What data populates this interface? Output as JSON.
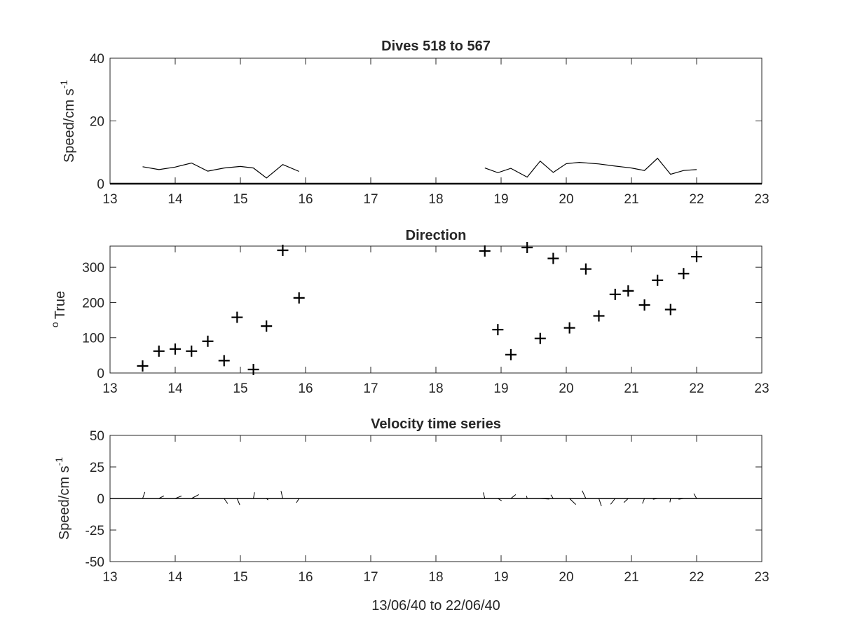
{
  "chart_data": [
    {
      "type": "line",
      "title": "Dives 518 to 567",
      "xlabel": "",
      "ylabel": "Speed/cm s",
      "ylabel_superscript": "-1",
      "xlim": [
        13,
        23
      ],
      "ylim": [
        0,
        40
      ],
      "xticks": [
        "13",
        "14",
        "15",
        "16",
        "17",
        "18",
        "19",
        "20",
        "21",
        "22",
        "23"
      ],
      "yticks": [
        "0",
        "20",
        "40"
      ],
      "grid": false,
      "segments": [
        {
          "x": [
            13.5,
            13.75,
            14.0,
            14.25,
            14.5,
            14.75,
            15.0,
            15.2,
            15.4,
            15.65,
            15.9
          ],
          "y": [
            5.4,
            4.5,
            5.3,
            6.6,
            4.0,
            5.0,
            5.5,
            5.0,
            1.8,
            6.1,
            3.9
          ]
        },
        {
          "x": [
            18.75,
            18.95,
            19.15,
            19.4,
            19.6,
            19.8,
            20.0,
            20.2,
            20.5,
            20.75,
            21.0,
            21.2,
            21.4,
            21.6,
            21.8,
            22.0
          ],
          "y": [
            5.0,
            3.5,
            4.9,
            2.1,
            7.2,
            3.6,
            6.4,
            6.8,
            6.3,
            5.6,
            5.0,
            4.2,
            8.1,
            3.0,
            4.2,
            4.5
          ]
        }
      ]
    },
    {
      "type": "scatter",
      "title": "Direction",
      "xlabel": "",
      "ylabel": "True",
      "ylabel_prefix": "o",
      "xlim": [
        13,
        23
      ],
      "ylim": [
        0,
        360
      ],
      "xticks": [
        "13",
        "14",
        "15",
        "16",
        "17",
        "18",
        "19",
        "20",
        "21",
        "22",
        "23"
      ],
      "yticks": [
        "0",
        "100",
        "200",
        "300"
      ],
      "grid": false,
      "points": {
        "x": [
          13.5,
          13.75,
          14.0,
          14.25,
          14.5,
          14.75,
          14.95,
          15.2,
          15.4,
          15.65,
          15.9,
          18.75,
          18.95,
          19.15,
          19.4,
          19.6,
          19.8,
          20.05,
          20.3,
          20.5,
          20.75,
          20.95,
          21.2,
          21.4,
          21.6,
          21.8,
          22.0
        ],
        "y": [
          20,
          62,
          68,
          62,
          90,
          35,
          158,
          10,
          133,
          348,
          213,
          346,
          123,
          52,
          356,
          98,
          325,
          128,
          295,
          162,
          223,
          233,
          193,
          263,
          180,
          282,
          330
        ]
      }
    },
    {
      "type": "line",
      "title": "Velocity time series",
      "xlabel": "13/06/40 to 22/06/40",
      "ylabel": "Speed/cm s",
      "ylabel_superscript": "-1",
      "xlim": [
        13,
        23
      ],
      "ylim": [
        -50,
        50
      ],
      "xticks": [
        "13",
        "14",
        "15",
        "16",
        "17",
        "18",
        "19",
        "20",
        "21",
        "22",
        "23"
      ],
      "yticks": [
        "-50",
        "-25",
        "0",
        "25",
        "50"
      ],
      "grid": false,
      "baseline": 0,
      "vectors": {
        "x": [
          13.5,
          13.75,
          14.0,
          14.25,
          14.5,
          14.75,
          14.95,
          15.2,
          15.4,
          15.65,
          15.9,
          18.75,
          18.95,
          19.15,
          19.4,
          19.6,
          19.8,
          20.05,
          20.3,
          20.5,
          20.75,
          20.95,
          21.2,
          21.4,
          21.6,
          21.8,
          22.0
        ],
        "u": [
          1.8,
          4.0,
          5.0,
          5.8,
          4.0,
          2.9,
          2.1,
          0.9,
          1.3,
          -1.4,
          -2.1,
          -1.2,
          3.0,
          3.9,
          -0.5,
          7.2,
          -1.9,
          5.0,
          -2.9,
          2.0,
          -3.6,
          -3.4,
          -1.6,
          -3.6,
          -0.5,
          -4.0,
          -2.2
        ],
        "v": [
          5.1,
          2.1,
          2.0,
          3.1,
          0.0,
          -4.1,
          -5.1,
          4.9,
          -1.2,
          6.0,
          -3.4,
          4.8,
          -1.8,
          3.1,
          2.1,
          -0.5,
          2.9,
          -4.8,
          6.2,
          -6.0,
          -4.6,
          -3.2,
          -4.0,
          -0.6,
          -3.0,
          -0.6,
          3.8
        ]
      }
    }
  ]
}
